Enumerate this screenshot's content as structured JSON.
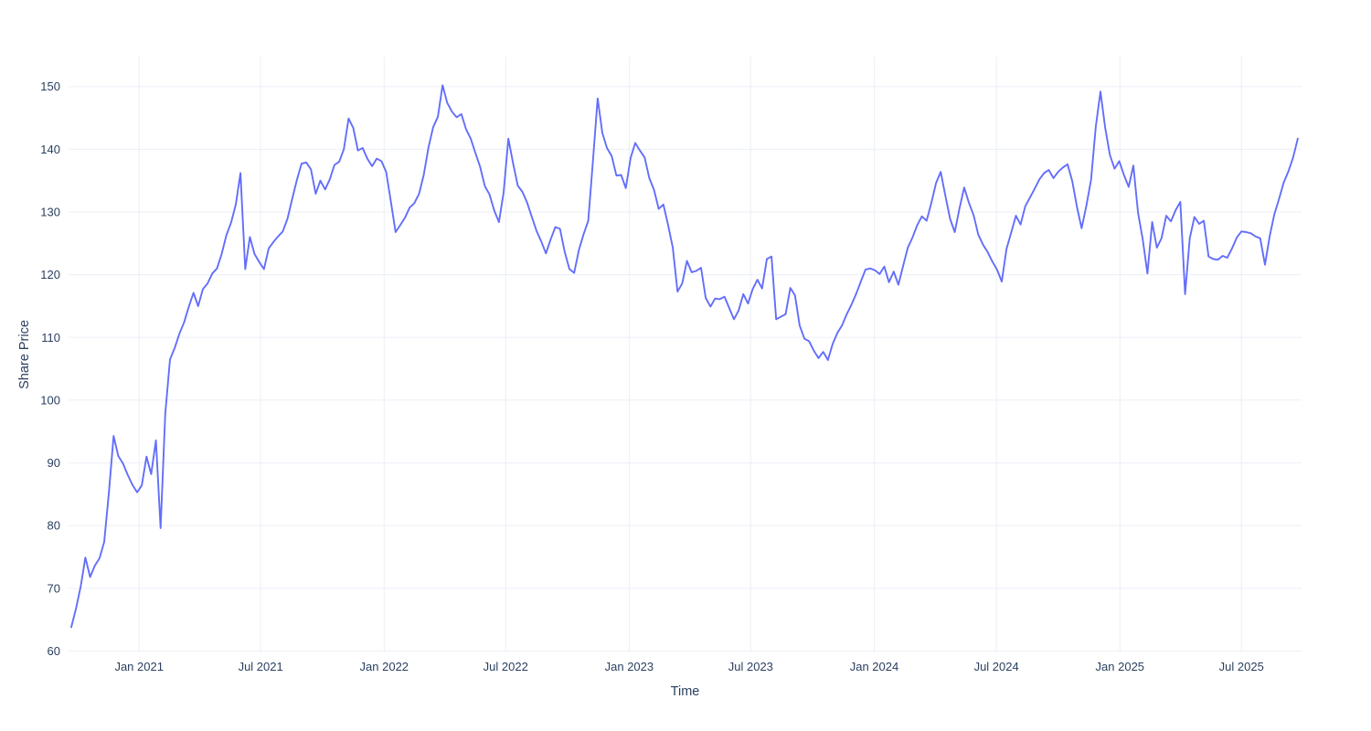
{
  "chart_data": {
    "type": "line",
    "title": "",
    "xlabel": "Time",
    "ylabel": "Share Price",
    "legend": false,
    "grid": true,
    "background_color": "#ffffff",
    "line_color": "#636efa",
    "grid_color": "#ebeff7",
    "text_color": "#2a3f5f",
    "line_width": 1.9,
    "y_ticks": [
      60,
      70,
      80,
      90,
      100,
      110,
      120,
      130,
      140,
      150
    ],
    "ylim": [
      59.7,
      154.7
    ],
    "x_ticks": [
      {
        "label": "Jan 2021",
        "day": 101
      },
      {
        "label": "Jul 2021",
        "day": 282
      },
      {
        "label": "Jan 2022",
        "day": 466
      },
      {
        "label": "Jul 2022",
        "day": 647
      },
      {
        "label": "Jan 2023",
        "day": 831
      },
      {
        "label": "Jul 2023",
        "day": 1012
      },
      {
        "label": "Jan 2024",
        "day": 1196
      },
      {
        "label": "Jul 2024",
        "day": 1378
      },
      {
        "label": "Jan 2025",
        "day": 1562
      },
      {
        "label": "Jul 2025",
        "day": 1743
      }
    ],
    "series": [
      {
        "name": "Share Price",
        "start_date": "2020-09-22",
        "step_days": 7,
        "values": [
          63.8,
          66.8,
          70.3,
          74.9,
          71.8,
          73.6,
          74.8,
          77.4,
          85.2,
          94.3,
          91.1,
          89.9,
          88.1,
          86.5,
          85.3,
          86.4,
          91.0,
          88.2,
          93.6,
          79.6,
          97.8,
          106.5,
          108.3,
          110.6,
          112.4,
          114.9,
          117.1,
          115.0,
          117.7,
          118.6,
          120.2,
          121.0,
          123.3,
          126.3,
          128.3,
          131.2,
          136.2,
          120.9,
          126.0,
          123.3,
          122.0,
          120.9,
          124.2,
          125.2,
          126.1,
          126.9,
          128.9,
          132.1,
          135.1,
          137.7,
          137.9,
          136.8,
          132.9,
          135.0,
          133.6,
          135.2,
          137.5,
          138.0,
          140.0,
          144.9,
          143.4,
          139.8,
          140.2,
          138.5,
          137.3,
          138.5,
          138.1,
          136.4,
          131.7,
          126.8,
          127.9,
          129.1,
          130.7,
          131.4,
          132.9,
          135.9,
          140.3,
          143.5,
          145.2,
          150.2,
          147.4,
          146.0,
          145.1,
          145.6,
          143.2,
          141.7,
          139.4,
          137.2,
          134.1,
          132.8,
          130.2,
          128.4,
          133.1,
          141.7,
          137.8,
          134.2,
          133.2,
          131.5,
          129.2,
          127.0,
          125.3,
          123.4,
          125.6,
          127.6,
          127.3,
          123.6,
          120.9,
          120.3,
          123.9,
          126.4,
          128.6,
          138.1,
          148.1,
          142.6,
          140.2,
          138.9,
          135.8,
          135.9,
          133.8,
          138.6,
          141.0,
          139.8,
          138.7,
          135.4,
          133.5,
          130.5,
          131.2,
          127.9,
          124.3,
          117.3,
          118.6,
          122.2,
          120.4,
          120.6,
          121.1,
          116.3,
          114.9,
          116.2,
          116.1,
          116.5,
          114.7,
          112.9,
          114.3,
          116.9,
          115.4,
          117.7,
          119.2,
          117.8,
          122.5,
          122.9,
          112.9,
          113.3,
          113.7,
          117.9,
          116.7,
          111.9,
          109.8,
          109.4,
          107.9,
          106.7,
          107.7,
          106.4,
          108.9,
          110.7,
          111.9,
          113.7,
          115.2,
          116.9,
          118.9,
          120.8,
          121.0,
          120.7,
          120.1,
          121.3,
          118.8,
          120.5,
          118.4,
          121.4,
          124.3,
          125.9,
          127.9,
          129.3,
          128.6,
          131.4,
          134.6,
          136.4,
          132.6,
          128.9,
          126.8,
          130.6,
          133.9,
          131.5,
          129.5,
          126.4,
          124.8,
          123.6,
          122.1,
          120.8,
          118.9,
          124.1,
          126.7,
          129.4,
          128.0,
          130.9,
          132.3,
          133.7,
          135.2,
          136.2,
          136.7,
          135.4,
          136.4,
          137.1,
          137.6,
          134.9,
          130.8,
          127.4,
          131.0,
          135.1,
          143.6,
          149.2,
          143.5,
          139.1,
          136.9,
          138.1,
          135.9,
          134.0,
          137.4,
          129.9,
          125.6,
          120.2,
          128.4,
          124.3,
          125.8,
          129.4,
          128.5,
          130.3,
          131.6,
          116.9,
          125.8,
          129.2,
          128.1,
          128.6,
          122.9,
          122.5,
          122.4,
          123.0,
          122.7,
          124.2,
          125.9,
          126.9,
          126.8,
          126.6,
          126.1,
          125.8,
          121.6,
          126.1,
          129.6,
          132.1,
          134.7,
          136.5,
          138.7,
          141.7
        ]
      }
    ]
  }
}
